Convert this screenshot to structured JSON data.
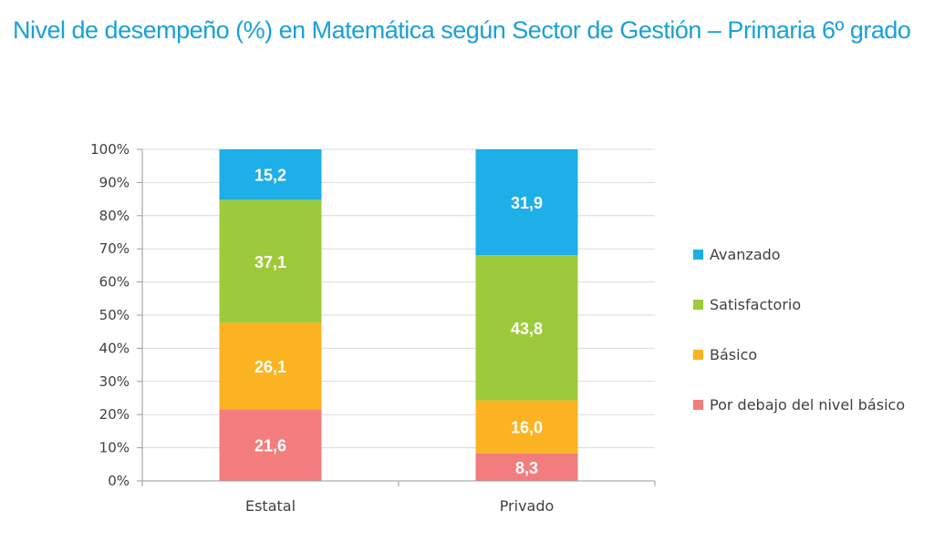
{
  "title": "Nivel de desempeño (%) en Matemática según Sector de Gestión – Primaria 6º grado",
  "title_color": "#1aa0d8",
  "chart_data": {
    "type": "bar",
    "stacked": true,
    "categories": [
      "Estatal",
      "Privado"
    ],
    "series": [
      {
        "name": "Por debajo del nivel básico",
        "color": "#f27d7d",
        "values": [
          21.6,
          8.3
        ],
        "labels": [
          "21,6",
          "8,3"
        ]
      },
      {
        "name": "Básico",
        "color": "#fbb321",
        "values": [
          26.1,
          16.0
        ],
        "labels": [
          "26,1",
          "16,0"
        ]
      },
      {
        "name": "Satisfactorio",
        "color": "#9dca3b",
        "values": [
          37.1,
          43.8
        ],
        "labels": [
          "37,1",
          "43,8"
        ]
      },
      {
        "name": "Avanzado",
        "color": "#1eaee8",
        "values": [
          15.2,
          31.9
        ],
        "labels": [
          "15,2",
          "31,9"
        ]
      }
    ],
    "legend_order": [
      "Avanzado",
      "Satisfactorio",
      "Básico",
      "Por debajo del nivel básico"
    ],
    "yticks": [
      "0%",
      "10%",
      "20%",
      "30%",
      "40%",
      "50%",
      "60%",
      "70%",
      "80%",
      "90%",
      "100%"
    ],
    "ylim": [
      0,
      100
    ],
    "grid": true,
    "legend_position": "right"
  }
}
